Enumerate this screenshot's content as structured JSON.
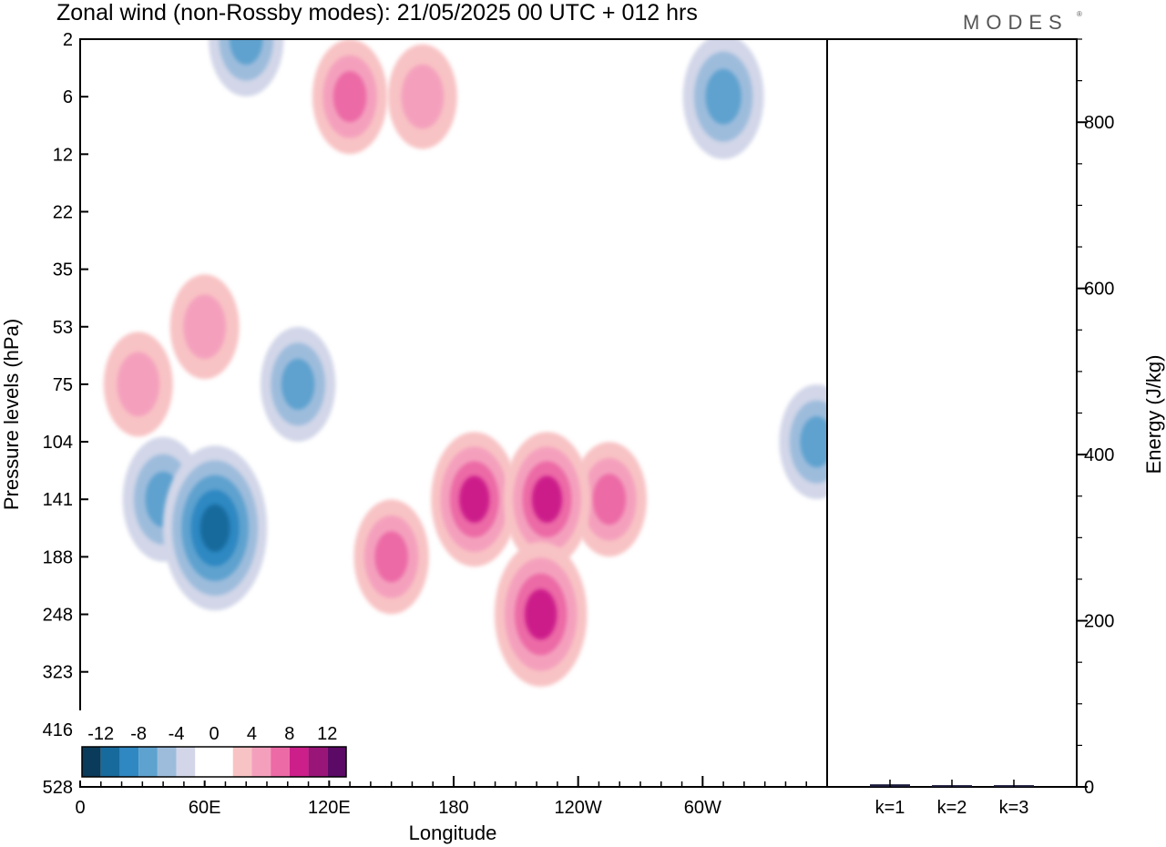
{
  "title": "Zonal wind (non-Rossby modes):  21/05/2025  00 UTC  + 012 hrs",
  "logo": "MODES",
  "chart_data": [
    {
      "type": "heatmap",
      "title": "Zonal wind (non-Rossby modes):  21/05/2025  00 UTC  + 012 hrs",
      "xlabel": "Longitude",
      "ylabel": "Pressure levels (hPa)",
      "x_ticks": [
        "0",
        "60E",
        "120E",
        "180",
        "120W",
        "60W"
      ],
      "x_tick_values": [
        0,
        60,
        120,
        180,
        240,
        300
      ],
      "xlim": [
        0,
        360
      ],
      "y_ticks": [
        "2",
        "6",
        "12",
        "22",
        "35",
        "53",
        "75",
        "104",
        "141",
        "188",
        "248",
        "323",
        "416",
        "528"
      ],
      "y_scale": "levels, top to bottom",
      "colorbar_labels": [
        "-12",
        "-8",
        "-4",
        "0",
        "4",
        "8",
        "12"
      ],
      "colorbar_levels": [
        -14,
        -12,
        -10,
        -8,
        -6,
        -4,
        -2,
        0,
        2,
        4,
        6,
        8,
        10,
        12,
        14
      ],
      "colorbar_colors": [
        "#0b3b5a",
        "#176a9c",
        "#2f88c2",
        "#5ea2cf",
        "#9dbcdc",
        "#d2d6e8",
        "#ffffff",
        "#ffffff",
        "#f8c3c4",
        "#f4a0bd",
        "#ec6aa6",
        "#cc1f8a",
        "#9a1578",
        "#5b0a66"
      ],
      "features": [
        {
          "lon": 65,
          "level": "141-188",
          "value": -11
        },
        {
          "lon": 40,
          "level": "141",
          "value": -7
        },
        {
          "lon": 105,
          "level": "75",
          "value": -6
        },
        {
          "lon": 190,
          "level": "141",
          "value": 8
        },
        {
          "lon": 222,
          "level": "248",
          "value": 9
        },
        {
          "lon": 225,
          "level": "141",
          "value": 8
        },
        {
          "lon": 150,
          "level": "188",
          "value": 6
        },
        {
          "lon": 255,
          "level": "141",
          "value": 6
        },
        {
          "lon": 310,
          "level": "6",
          "value": -7
        },
        {
          "lon": 355,
          "level": "104",
          "value": -6
        },
        {
          "lon": 60,
          "level": "53",
          "value": 5
        },
        {
          "lon": 28,
          "level": "75",
          "value": 5
        },
        {
          "lon": 165,
          "level": "6",
          "value": 5
        },
        {
          "lon": 80,
          "level": "2",
          "value": -6
        },
        {
          "lon": 130,
          "level": "6",
          "value": 6
        }
      ]
    },
    {
      "type": "bar",
      "categories": [
        "k=1",
        "k=2",
        "k=3"
      ],
      "values": [
        2,
        1,
        1
      ],
      "ylabel": "Energy (J/kg)",
      "ylim": [
        0,
        900
      ],
      "y_ticks": [
        0,
        200,
        400,
        600,
        800
      ],
      "bar_color": "#1a1a3a"
    }
  ]
}
